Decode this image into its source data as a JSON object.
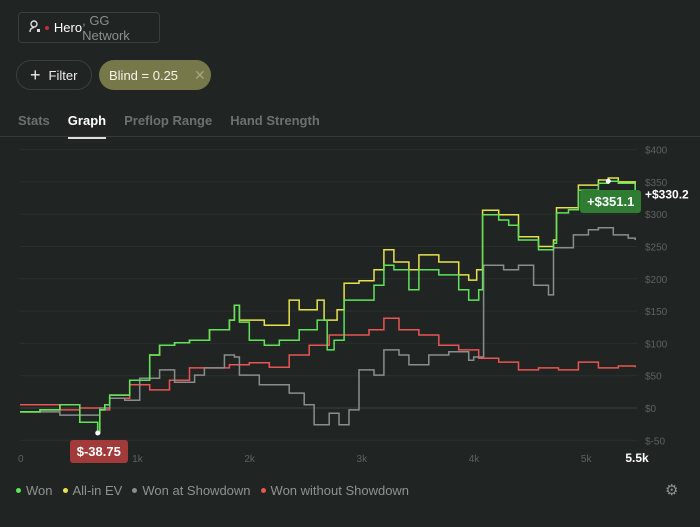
{
  "account": {
    "icon": "user-icon",
    "status_color": "#c0302c",
    "name": "Hero",
    "network": ", GG Network"
  },
  "filters": {
    "add_label": "Filter",
    "add_icon": "plus-icon",
    "chips": [
      {
        "label": "Blind = 0.25",
        "remove_icon": "close-icon"
      }
    ]
  },
  "tabs": [
    {
      "label": "Stats"
    },
    {
      "label": "Graph",
      "active": true
    },
    {
      "label": "Preflop Range"
    },
    {
      "label": "Hand Strength"
    }
  ],
  "chart_data": {
    "type": "line",
    "xlabel": "",
    "ylabel": "",
    "xlim": [
      0,
      5500
    ],
    "ylim": [
      -50,
      400
    ],
    "x_ticks": [
      "0",
      "1k",
      "2k",
      "3k",
      "4k",
      "5k",
      "5.5k"
    ],
    "y_ticks": [
      "$400",
      "$350",
      "$300",
      "$250",
      "$200",
      "$150",
      "$100",
      "$50",
      "$0",
      "$-50"
    ],
    "grid": true,
    "legend": "bottom-left",
    "series": [
      {
        "name": "Won",
        "color": "#5fe35a",
        "points": [
          [
            0,
            -6
          ],
          [
            178,
            -3
          ],
          [
            356,
            5
          ],
          [
            533,
            -22
          ],
          [
            693,
            -38.75
          ],
          [
            711,
            -3
          ],
          [
            756,
            5
          ],
          [
            800,
            20
          ],
          [
            978,
            43
          ],
          [
            1156,
            82
          ],
          [
            1244,
            97
          ],
          [
            1378,
            101
          ],
          [
            1511,
            105
          ],
          [
            1689,
            121
          ],
          [
            1867,
            136
          ],
          [
            1911,
            159
          ],
          [
            1956,
            133
          ],
          [
            2044,
            105
          ],
          [
            2178,
            97
          ],
          [
            2311,
            105
          ],
          [
            2489,
            121
          ],
          [
            2649,
            136
          ],
          [
            2738,
            90
          ],
          [
            2800,
            105
          ],
          [
            2889,
            167
          ],
          [
            3022,
            167
          ],
          [
            3156,
            190
          ],
          [
            3244,
            221
          ],
          [
            3333,
            214
          ],
          [
            3467,
            183
          ],
          [
            3556,
            214
          ],
          [
            3733,
            206
          ],
          [
            3911,
            183
          ],
          [
            4000,
            167
          ],
          [
            4089,
            183
          ],
          [
            4124,
            299
          ],
          [
            4178,
            299
          ],
          [
            4267,
            291
          ],
          [
            4356,
            283
          ],
          [
            4444,
            260
          ],
          [
            4622,
            245
          ],
          [
            4756,
            255
          ],
          [
            4782,
            302
          ],
          [
            4889,
            307
          ],
          [
            4978,
            337
          ],
          [
            5156,
            348
          ],
          [
            5244,
            351.1
          ],
          [
            5333,
            348
          ],
          [
            5484,
            330.2
          ]
        ]
      },
      {
        "name": "All-in EV",
        "color": "#e8e24a",
        "points": [
          [
            0,
            -6
          ],
          [
            178,
            -3
          ],
          [
            356,
            5
          ],
          [
            533,
            -22
          ],
          [
            693,
            -38.75
          ],
          [
            711,
            -3
          ],
          [
            756,
            5
          ],
          [
            800,
            20
          ],
          [
            978,
            43
          ],
          [
            1156,
            82
          ],
          [
            1244,
            97
          ],
          [
            1378,
            101
          ],
          [
            1511,
            105
          ],
          [
            1689,
            121
          ],
          [
            1867,
            136
          ],
          [
            1911,
            159
          ],
          [
            1956,
            136
          ],
          [
            2178,
            128
          ],
          [
            2400,
            167
          ],
          [
            2489,
            152
          ],
          [
            2649,
            167
          ],
          [
            2711,
            136
          ],
          [
            2827,
            152
          ],
          [
            2889,
            193
          ],
          [
            3022,
            197
          ],
          [
            3156,
            214
          ],
          [
            3244,
            245
          ],
          [
            3333,
            226
          ],
          [
            3467,
            214
          ],
          [
            3556,
            237
          ],
          [
            3733,
            226
          ],
          [
            3911,
            206
          ],
          [
            4000,
            198
          ],
          [
            4071,
            214
          ],
          [
            4124,
            306
          ],
          [
            4267,
            299
          ],
          [
            4444,
            265
          ],
          [
            4622,
            250
          ],
          [
            4756,
            260
          ],
          [
            4782,
            310
          ],
          [
            4978,
            345
          ],
          [
            5156,
            353
          ],
          [
            5244,
            356
          ],
          [
            5333,
            350
          ],
          [
            5484,
            338
          ]
        ]
      },
      {
        "name": "Won at Showdown",
        "color": "#8a8d8c",
        "points": [
          [
            0,
            -6
          ],
          [
            356,
            -11
          ],
          [
            711,
            0
          ],
          [
            800,
            15
          ],
          [
            933,
            12
          ],
          [
            1067,
            46
          ],
          [
            1244,
            59
          ],
          [
            1378,
            40
          ],
          [
            1556,
            51
          ],
          [
            1644,
            62
          ],
          [
            1822,
            82
          ],
          [
            1911,
            79
          ],
          [
            1956,
            51
          ],
          [
            2133,
            36
          ],
          [
            2400,
            23
          ],
          [
            2533,
            5
          ],
          [
            2622,
            -26
          ],
          [
            2756,
            -8
          ],
          [
            2844,
            -26
          ],
          [
            2933,
            -3
          ],
          [
            3022,
            59
          ],
          [
            3156,
            51
          ],
          [
            3244,
            90
          ],
          [
            3378,
            82
          ],
          [
            3467,
            67
          ],
          [
            3644,
            82
          ],
          [
            3822,
            87
          ],
          [
            4000,
            74
          ],
          [
            4044,
            79
          ],
          [
            4133,
            221
          ],
          [
            4311,
            214
          ],
          [
            4444,
            221
          ],
          [
            4578,
            190
          ],
          [
            4711,
            175
          ],
          [
            4756,
            248
          ],
          [
            4933,
            268
          ],
          [
            5067,
            276
          ],
          [
            5156,
            279
          ],
          [
            5289,
            268
          ],
          [
            5422,
            263
          ],
          [
            5484,
            260
          ]
        ]
      },
      {
        "name": "Won without Showdown",
        "color": "#e85552",
        "points": [
          [
            0,
            5
          ],
          [
            178,
            5
          ],
          [
            356,
            -3
          ],
          [
            533,
            0
          ],
          [
            711,
            -3
          ],
          [
            800,
            15
          ],
          [
            978,
            36
          ],
          [
            1156,
            28
          ],
          [
            1333,
            43
          ],
          [
            1511,
            62
          ],
          [
            1689,
            62
          ],
          [
            1867,
            67
          ],
          [
            2044,
            70
          ],
          [
            2222,
            63
          ],
          [
            2400,
            82
          ],
          [
            2578,
            97
          ],
          [
            2756,
            113
          ],
          [
            2933,
            113
          ],
          [
            3111,
            121
          ],
          [
            3244,
            139
          ],
          [
            3378,
            121
          ],
          [
            3556,
            113
          ],
          [
            3733,
            97
          ],
          [
            3911,
            90
          ],
          [
            4089,
            77
          ],
          [
            4267,
            71
          ],
          [
            4444,
            59
          ],
          [
            4622,
            62
          ],
          [
            4800,
            59
          ],
          [
            4978,
            71
          ],
          [
            5156,
            62
          ],
          [
            5333,
            65
          ],
          [
            5484,
            63
          ]
        ]
      }
    ],
    "annotations": [
      {
        "label": "$-38.75",
        "x": 693,
        "y": -38.75,
        "color": "#a13a38"
      },
      {
        "label": "+$351.1",
        "x": 5244,
        "y": 351.1,
        "color": "#2e7d32"
      },
      {
        "label": "+$330.2",
        "x": 5500,
        "y": 330.2
      }
    ]
  },
  "settings_icon": "gear-icon"
}
